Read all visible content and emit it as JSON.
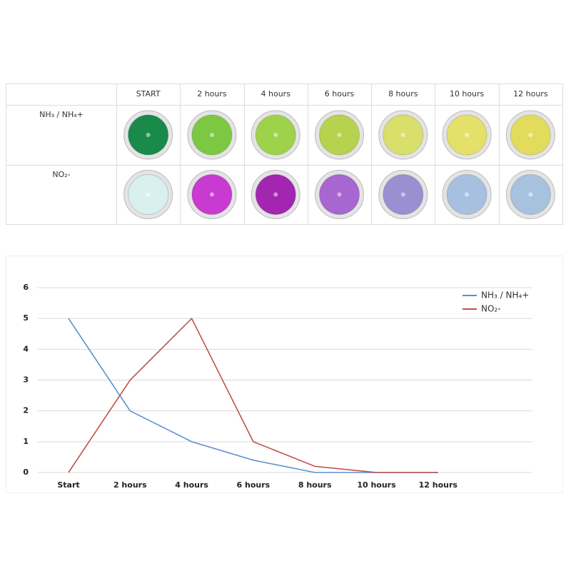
{
  "table": {
    "header": [
      "START",
      "2 hours",
      "4 hours",
      "6 hours",
      "8 hours",
      "10 hours",
      "12 hours"
    ],
    "rows": [
      {
        "label": "NH₃ / NH₄+",
        "colors": [
          "#1a8a4a",
          "#7cc843",
          "#9ed24a",
          "#b6d24e",
          "#d8df6a",
          "#e4e06a",
          "#e2dc5c"
        ]
      },
      {
        "label": "NO₂-",
        "colors": [
          "#d8f0ee",
          "#c93ad0",
          "#a226b0",
          "#a766d0",
          "#9a8fd0",
          "#a8c0e0",
          "#a7c2de"
        ]
      }
    ]
  },
  "chart_data": {
    "type": "line",
    "categories": [
      "Start",
      "2 hours",
      "4 hours",
      "6 hours",
      "8 hours",
      "10 hours",
      "12 hours"
    ],
    "series": [
      {
        "name": "NH₃ / NH₄+",
        "color": "#5b8fd0",
        "values": [
          5,
          2,
          1,
          0.4,
          0,
          0,
          0
        ]
      },
      {
        "name": "NO₂-",
        "color": "#c0504d",
        "values": [
          0,
          3,
          5,
          1,
          0.2,
          0,
          0
        ]
      }
    ],
    "ylim": [
      0,
      6
    ],
    "yticks": [
      0,
      1,
      2,
      3,
      4,
      5,
      6
    ],
    "grid": true,
    "legend": "top-right"
  }
}
